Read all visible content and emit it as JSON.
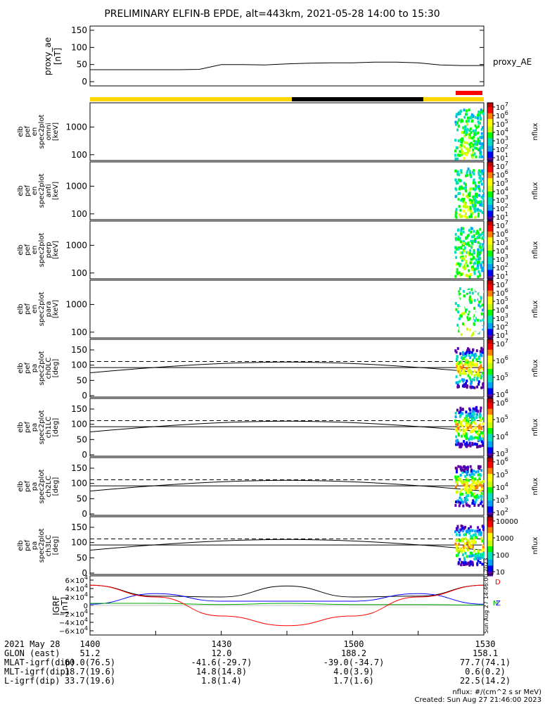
{
  "title": "PRELIMINARY ELFIN-B EPDE, alt=443km, 2021-05-28 14:00 to 15:30",
  "chart_data": [
    {
      "type": "line",
      "panel": "proxy_ae",
      "ylabel": [
        "proxy_ae",
        "[nT]"
      ],
      "yticks": [
        "150",
        "100",
        "50",
        "0"
      ],
      "ylim": [
        0,
        150
      ],
      "series": [
        {
          "name": "proxy_AE",
          "x_min": [
            0,
            10,
            20,
            25,
            30,
            35,
            40,
            45,
            50,
            55,
            60,
            65,
            70,
            75,
            80,
            85,
            90
          ],
          "y": [
            35,
            35,
            35,
            36,
            50,
            50,
            49,
            52,
            54,
            55,
            55,
            57,
            57,
            55,
            49,
            47,
            47
          ]
        }
      ]
    },
    {
      "type": "heatmap",
      "panel": "omni",
      "ylabel": [
        "elb",
        "pef",
        "en",
        "spec2plot",
        "omni",
        "[keV]"
      ],
      "yticks": [
        "1000",
        "100"
      ],
      "zlabel": "nflux",
      "zticks": [
        "10^7",
        "10^6",
        "10^5",
        "10^4",
        "10^3",
        "10^2",
        "10^1"
      ]
    },
    {
      "type": "heatmap",
      "panel": "anti",
      "ylabel": [
        "elb",
        "pef",
        "en",
        "spec2plot",
        "anti",
        "[keV]"
      ],
      "yticks": [
        "1000",
        "100"
      ],
      "zlabel": "nflux",
      "zticks": [
        "10^7",
        "10^6",
        "10^5",
        "10^4",
        "10^3",
        "10^2",
        "10^1"
      ]
    },
    {
      "type": "heatmap",
      "panel": "perp",
      "ylabel": [
        "elb",
        "pef",
        "en",
        "spec2plot",
        "perp",
        "[keV]"
      ],
      "yticks": [
        "1000",
        "100"
      ],
      "zlabel": "nflux",
      "zticks": [
        "10^7",
        "10^6",
        "10^5",
        "10^4",
        "10^3",
        "10^2",
        "10^1"
      ]
    },
    {
      "type": "heatmap",
      "panel": "para",
      "ylabel": [
        "elb",
        "pef",
        "en",
        "spec2plot",
        "para",
        "[keV]"
      ],
      "yticks": [
        "1000",
        "100"
      ],
      "zlabel": "nflux",
      "zticks": [
        "10^7",
        "10^6",
        "10^5",
        "10^4",
        "10^3",
        "10^2",
        "10^1"
      ]
    },
    {
      "type": "heatmap",
      "panel": "ch0LC",
      "ylabel": [
        "elb",
        "pef",
        "pa",
        "spec2plot",
        "ch0LC",
        "[deg]"
      ],
      "yticks": [
        "150",
        "100",
        "50",
        "0"
      ],
      "zlabel": "nflux",
      "zticks": [
        "10^7",
        "10^6",
        "10^5",
        "10^4"
      ]
    },
    {
      "type": "heatmap",
      "panel": "ch1LC",
      "ylabel": [
        "elb",
        "pef",
        "pa",
        "spec2plot",
        "ch1LC",
        "[deg]"
      ],
      "yticks": [
        "150",
        "100",
        "50",
        "0"
      ],
      "zlabel": "nflux",
      "zticks": [
        "10^6",
        "10^5",
        "10^4",
        "10^3"
      ]
    },
    {
      "type": "heatmap",
      "panel": "ch2LC",
      "ylabel": [
        "elb",
        "pef",
        "pa",
        "spec2plot",
        "ch2LC",
        "[deg]"
      ],
      "yticks": [
        "150",
        "100",
        "50",
        "0"
      ],
      "zlabel": "nflux",
      "zticks": [
        "10^6",
        "10^5",
        "10^4",
        "10^3",
        "10^2"
      ]
    },
    {
      "type": "heatmap",
      "panel": "ch3LC",
      "ylabel": [
        "elb",
        "pef",
        "pa",
        "spec2plot",
        "ch3LC",
        "[deg]"
      ],
      "yticks": [
        "150",
        "100",
        "50",
        "0"
      ],
      "zlabel": "nflux",
      "zticks": [
        "10000",
        "1000",
        "100",
        "10"
      ]
    },
    {
      "type": "line",
      "panel": "IGRF",
      "ylabel": [
        "IGRF",
        "[nT]"
      ],
      "yticks": [
        "6×10^4",
        "4×10^4",
        "2×10^4",
        "0",
        "−2×10^4",
        "−4×10^4",
        "−6×10^4"
      ],
      "legend": [
        "N",
        "Z"
      ],
      "series": [
        {
          "name": "black",
          "color": "#000000",
          "x_min": [
            0,
            15,
            30,
            45,
            60,
            75,
            90
          ],
          "y": [
            48000,
            22000,
            20000,
            46000,
            20000,
            22000,
            48000
          ]
        },
        {
          "name": "blue",
          "color": "#0000ff",
          "x_min": [
            0,
            15,
            30,
            45,
            60,
            75,
            90
          ],
          "y": [
            3000,
            28000,
            10000,
            10000,
            10000,
            28000,
            3000
          ]
        },
        {
          "name": "green",
          "color": "#00aa00",
          "x_min": [
            0,
            15,
            30,
            45,
            60,
            75,
            90
          ],
          "y": [
            5000,
            5000,
            2000,
            5000,
            2000,
            2000,
            1000
          ]
        },
        {
          "name": "red",
          "color": "#ff0000",
          "x_min": [
            0,
            15,
            30,
            45,
            60,
            75,
            90
          ],
          "y": [
            48000,
            20000,
            -25000,
            -48000,
            -25000,
            20000,
            48000
          ]
        }
      ]
    }
  ],
  "x_axis": {
    "rows": [
      {
        "label": "2021 May 28",
        "vals": [
          "1400",
          "1430",
          "1500",
          "1530"
        ]
      },
      {
        "label": "GLON (east)",
        "vals": [
          "51.2",
          "12.0",
          "188.2",
          "158.1"
        ]
      },
      {
        "label": "MLAT-igrf(dip)",
        "vals": [
          "60.0(76.5)",
          "-41.6(-29.7)",
          "-39.0(-34.7)",
          "77.7(74.1)"
        ]
      },
      {
        "label": "MLT-igrf(dip)",
        "vals": [
          "18.7(19.6)",
          "14.8(14.8)",
          "4.0(3.9)",
          "0.6(0.2)"
        ]
      },
      {
        "label": "L-igrf(dip)",
        "vals": [
          "33.7(19.6)",
          "1.8(1.4)",
          "1.7(1.6)",
          "22.5(14.2)"
        ]
      }
    ]
  },
  "footer": {
    "units": "nflux: #/(cm^2 s sr MeV)",
    "created": "Created: Sun Aug 27 21:46:00 2023"
  },
  "side_stamp": "Sun Aug 27 14:46:00 2023",
  "colors": {
    "bar_yellow": "#ffd700",
    "bar_black": "#000000",
    "bar_red": "#ff0000"
  }
}
